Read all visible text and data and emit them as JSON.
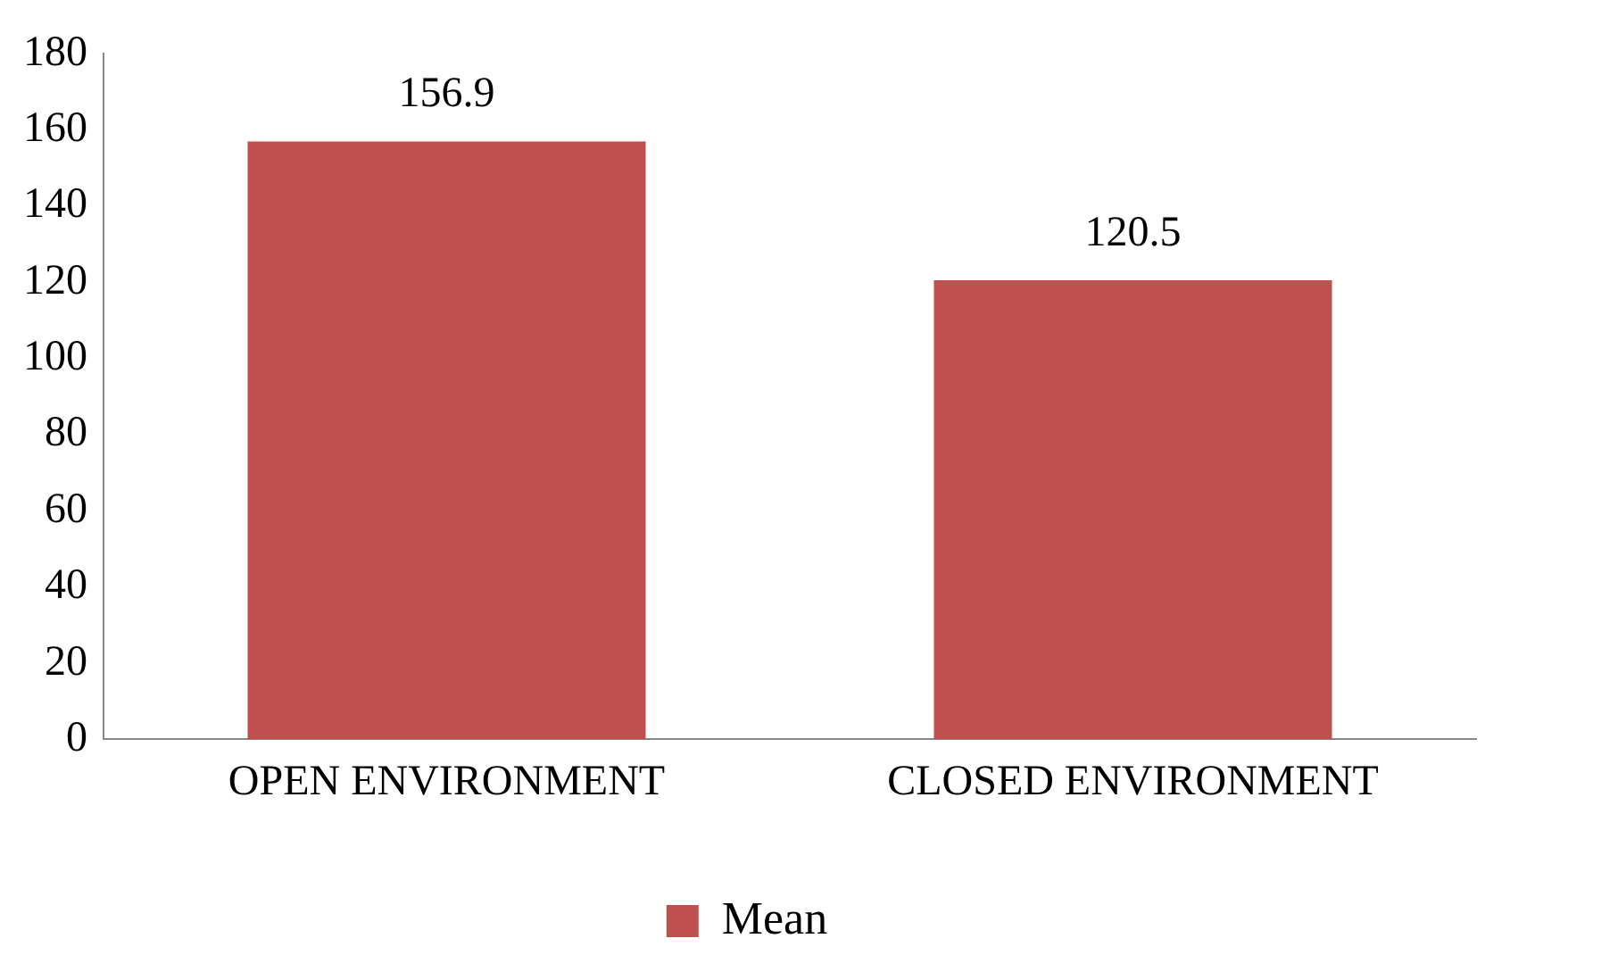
{
  "chart_data": {
    "type": "bar",
    "categories": [
      "OPEN ENVIRONMENT",
      "CLOSED ENVIRONMENT"
    ],
    "series": [
      {
        "name": "Mean",
        "color": "#c0504d",
        "values": [
          156.9,
          120.5
        ]
      }
    ],
    "ylim": [
      0,
      180
    ],
    "yticks": [
      0,
      20,
      40,
      60,
      80,
      100,
      120,
      140,
      160,
      180
    ],
    "grid": false,
    "legend": "bottom",
    "data_labels": true
  }
}
